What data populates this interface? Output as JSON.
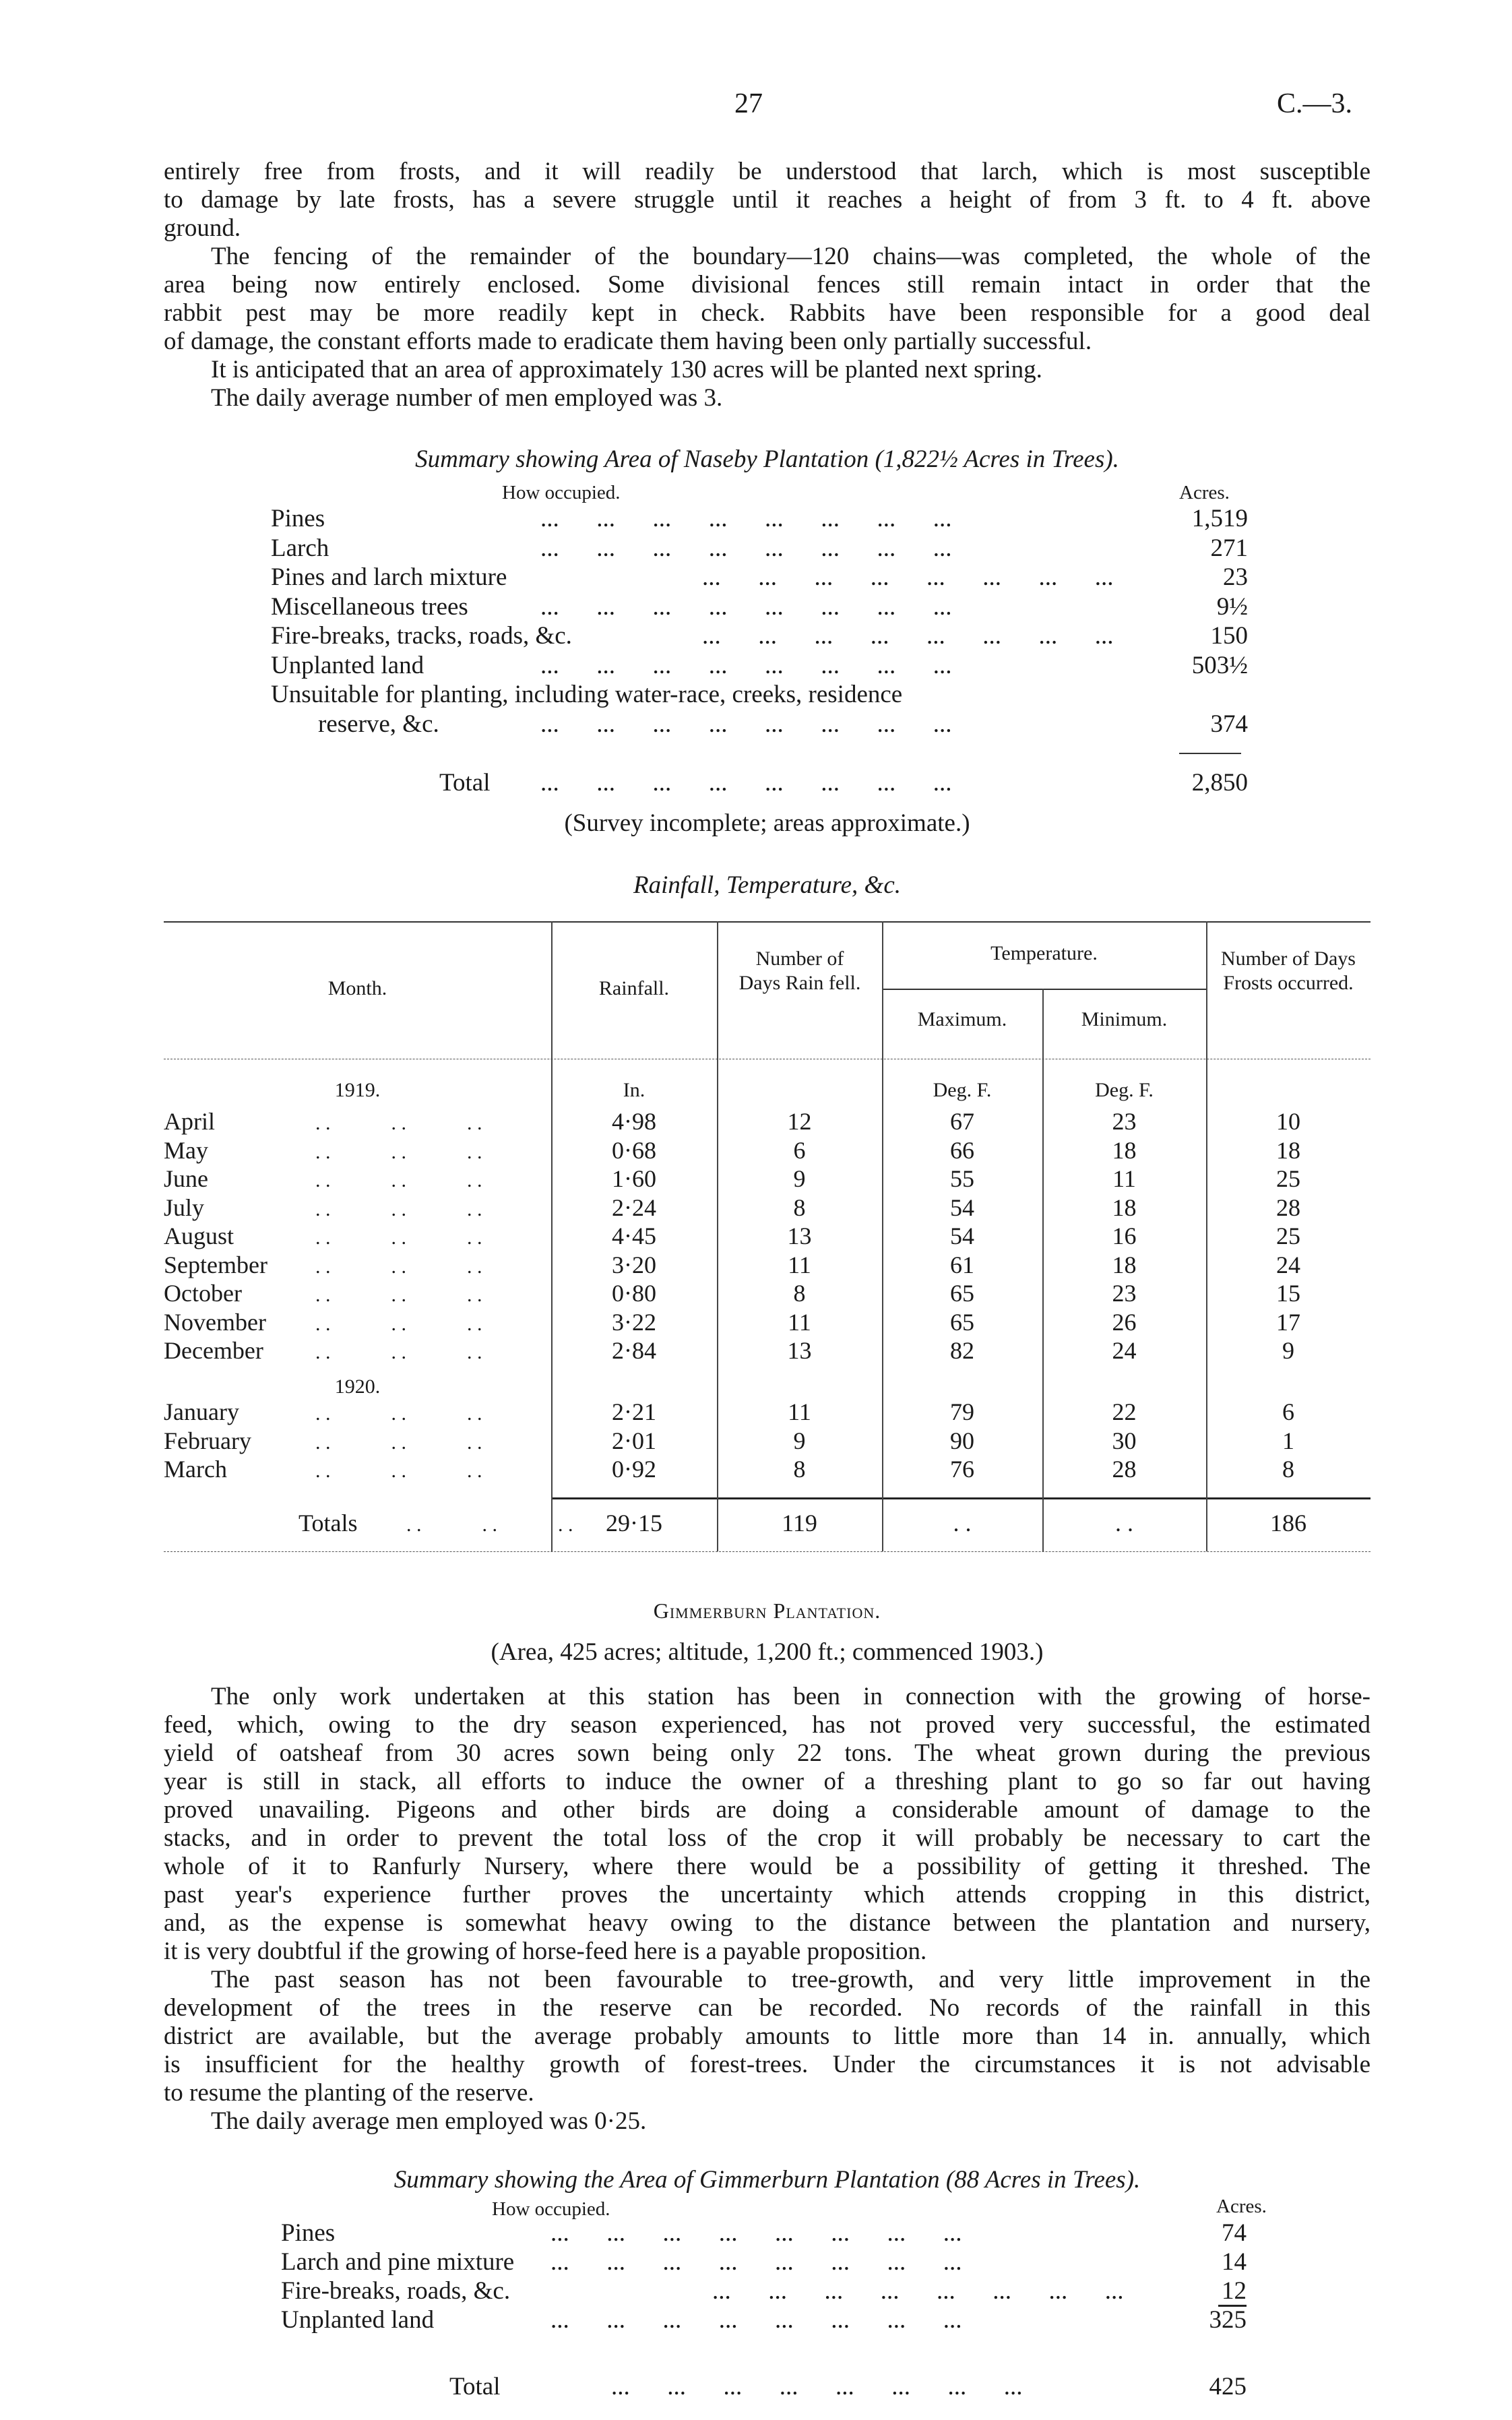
{
  "header": {
    "page_number": "27",
    "reference": "C.—3."
  },
  "naseby": {
    "paragraphs": [
      {
        "indent": false,
        "lines": [
          "entirely free from frosts, and it will readily be understood that larch, which is most susceptible",
          "to damage by late frosts, has a severe struggle until it reaches a height of from 3 ft. to 4 ft. above",
          "ground."
        ]
      },
      {
        "indent": true,
        "lines": [
          "The fencing of the remainder of the boundary—120 chains—was completed, the whole of the",
          "area being now entirely enclosed.  Some divisional fences still remain intact in order that the",
          "rabbit pest may be more readily kept in check.  Rabbits have been responsible for a good deal",
          "of damage, the constant efforts made to eradicate them having been only partially successful."
        ]
      },
      {
        "indent": true,
        "lines": [
          "It is anticipated that an area of approximately 130 acres will be planted next spring."
        ]
      },
      {
        "indent": true,
        "lines": [
          "The daily average number of men employed was 3."
        ]
      }
    ],
    "summary": {
      "title": "Summary showing Area of Naseby Plantation (1,822½ Acres in Trees).",
      "col_label": "How occupied.",
      "col_unit": "Acres.",
      "rows": [
        {
          "label": "Pines",
          "value": "1,519"
        },
        {
          "label": "Larch",
          "value": "271"
        },
        {
          "label": "Pines and larch mixture",
          "value": "23"
        },
        {
          "label": "Miscellaneous trees",
          "value": "9½"
        },
        {
          "label": "Fire-breaks, tracks, roads, &c.",
          "value": "150"
        },
        {
          "label": "Unplanted land",
          "value": "503½"
        },
        {
          "label": "Unsuitable  for  planting,  including  water-race,  creeks,  residence",
          "value": ""
        },
        {
          "label": "reserve, &c.",
          "value": "374",
          "indent": true
        }
      ],
      "total_label": "Total",
      "total_value": "2,850",
      "note": "(Survey incomplete; areas approximate.)"
    }
  },
  "rainfall_table": {
    "title": "Rainfall, Temperature, &c.",
    "headers": {
      "month": "Month.",
      "rainfall": "Rainfall.",
      "days_rain": "Number of Days Rain fell.",
      "temperature": "Temperature.",
      "maximum": "Maximum.",
      "minimum": "Minimum.",
      "frost_days": "Number of Days Frosts occurred."
    },
    "units": {
      "rainfall": "In.",
      "maximum": "Deg. F.",
      "minimum": "Deg. F."
    },
    "year_1919": "1919.",
    "year_1920": "1920.",
    "rows_1919": [
      {
        "month": "April",
        "rainfall": "4·98",
        "days": "12",
        "max": "67",
        "min": "23",
        "frost": "10"
      },
      {
        "month": "May",
        "rainfall": "0·68",
        "days": "6",
        "max": "66",
        "min": "18",
        "frost": "18"
      },
      {
        "month": "June",
        "rainfall": "1·60",
        "days": "9",
        "max": "55",
        "min": "11",
        "frost": "25"
      },
      {
        "month": "July",
        "rainfall": "2·24",
        "days": "8",
        "max": "54",
        "min": "18",
        "frost": "28"
      },
      {
        "month": "August",
        "rainfall": "4·45",
        "days": "13",
        "max": "54",
        "min": "16",
        "frost": "25"
      },
      {
        "month": "September",
        "rainfall": "3·20",
        "days": "11",
        "max": "61",
        "min": "18",
        "frost": "24"
      },
      {
        "month": "October",
        "rainfall": "0·80",
        "days": "8",
        "max": "65",
        "min": "23",
        "frost": "15"
      },
      {
        "month": "November",
        "rainfall": "3·22",
        "days": "11",
        "max": "65",
        "min": "26",
        "frost": "17"
      },
      {
        "month": "December",
        "rainfall": "2·84",
        "days": "13",
        "max": "82",
        "min": "24",
        "frost": "9"
      }
    ],
    "rows_1920": [
      {
        "month": "January",
        "rainfall": "2·21",
        "days": "11",
        "max": "79",
        "min": "22",
        "frost": "6"
      },
      {
        "month": "February",
        "rainfall": "2·01",
        "days": "9",
        "max": "90",
        "min": "30",
        "frost": "1"
      },
      {
        "month": "March",
        "rainfall": "0·92",
        "days": "8",
        "max": "76",
        "min": "28",
        "frost": "8"
      }
    ],
    "totals": {
      "label": "Totals",
      "rainfall": "29·15",
      "days": "119",
      "max": ". .",
      "min": ". .",
      "frost": "186"
    }
  },
  "gimmerburn": {
    "heading": "Gimmerburn Plantation.",
    "subheading": "(Area, 425 acres;  altitude, 1,200 ft.;  commenced 1903.)",
    "paragraphs": [
      {
        "indent": true,
        "lines": [
          "The only work undertaken at this station has been in connection with the growing of horse-",
          "feed, which, owing to the dry season experienced, has not proved very successful, the estimated",
          "yield of oatsheaf from 30 acres sown being only 22 tons.  The wheat grown during the previous",
          "year is still in stack, all efforts to induce the owner of a threshing plant to go so far out having",
          "proved unavailing.  Pigeons and other birds are doing a considerable amount of damage to the",
          "stacks, and in order to prevent the total loss of the crop it will probably be necessary to cart the",
          "whole of it to Ranfurly Nursery, where there would be a possibility of getting it threshed.  The",
          "past year's experience further proves the uncertainty which attends cropping in this district,",
          "and, as the expense is somewhat heavy owing to the distance between the plantation and nursery,",
          "it is very doubtful if the growing of horse-feed here is a payable proposition."
        ]
      },
      {
        "indent": true,
        "lines": [
          "The past season has not been favourable to tree-growth, and very little improvement in the",
          "development of the trees in the reserve can be recorded.  No records of the rainfall in this",
          "district are available, but the average probably amounts to little more than 14 in. annually, which",
          "is insufficient for the healthy growth of forest-trees.  Under the circumstances it is not advisable",
          "to resume the planting of the reserve."
        ]
      },
      {
        "indent": true,
        "lines": [
          "The daily average men employed was 0·25."
        ]
      }
    ],
    "summary": {
      "title": "Summary showing the Area of Gimmerburn Plantation (88 Acres in Trees).",
      "col_label": "How occupied.",
      "col_unit": "Acres.",
      "rows": [
        {
          "label": "Pines",
          "value": "74"
        },
        {
          "label": "Larch and pine mixture",
          "value": "14"
        },
        {
          "label": "Fire-breaks, roads, &c.",
          "value": "12"
        },
        {
          "label": "Unplanted land",
          "value": "325"
        }
      ],
      "total_label": "Total",
      "total_value": "425"
    }
  }
}
